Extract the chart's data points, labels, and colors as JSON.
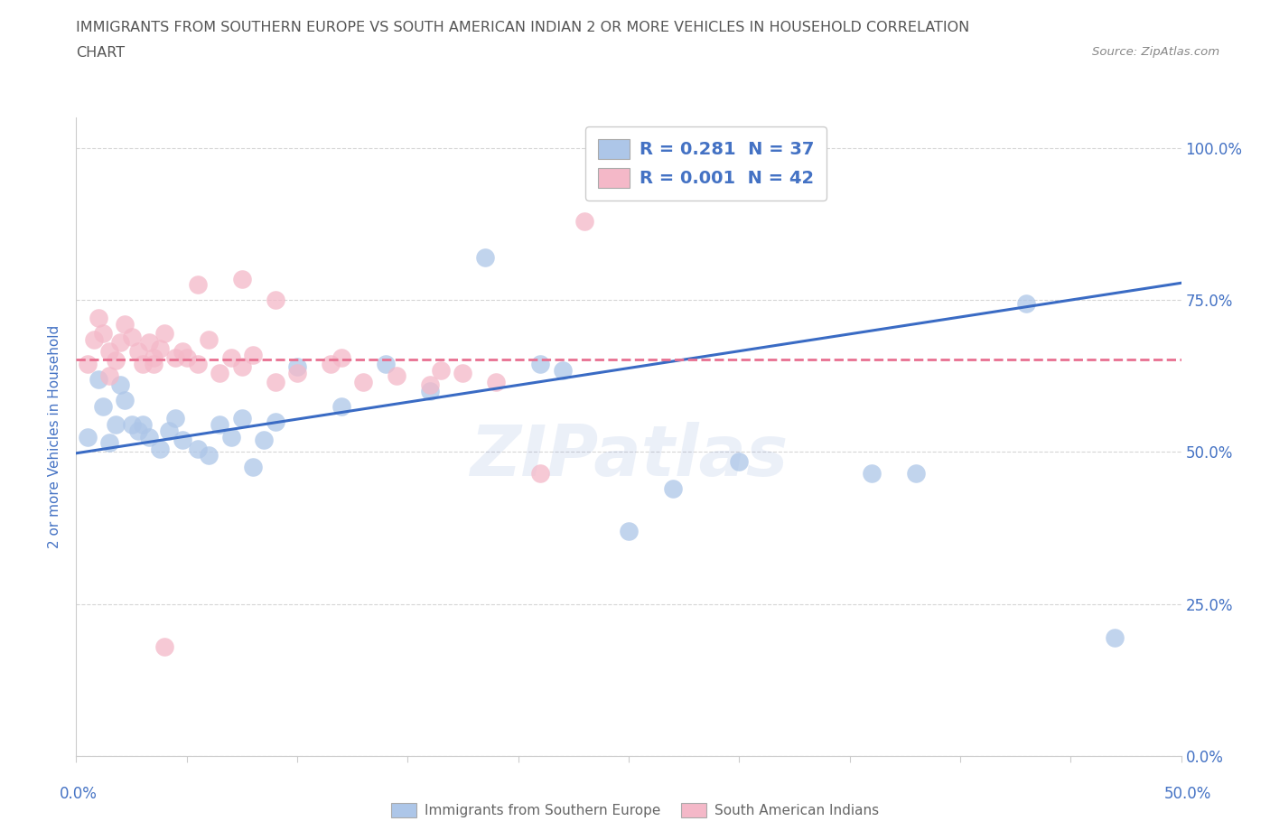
{
  "title_line1": "IMMIGRANTS FROM SOUTHERN EUROPE VS SOUTH AMERICAN INDIAN 2 OR MORE VEHICLES IN HOUSEHOLD CORRELATION",
  "title_line2": "CHART",
  "source": "Source: ZipAtlas.com",
  "ylabel": "2 or more Vehicles in Household",
  "ytick_vals": [
    0.0,
    0.25,
    0.5,
    0.75,
    1.0
  ],
  "ytick_labels": [
    "0.0%",
    "25.0%",
    "50.0%",
    "75.0%",
    "100.0%"
  ],
  "xlim": [
    0.0,
    0.5
  ],
  "ylim": [
    0.0,
    1.05
  ],
  "blue_color": "#adc6e8",
  "pink_color": "#f4b8c8",
  "line_blue": "#3a6bc4",
  "line_pink": "#e87090",
  "watermark_color": "#4472c4",
  "background_color": "#ffffff",
  "grid_color": "#cccccc",
  "axis_label_color": "#4472c4",
  "title_color": "#555555",
  "blue_line_x": [
    0.0,
    0.5
  ],
  "blue_line_y": [
    0.498,
    0.778
  ],
  "pink_line_x": [
    0.0,
    0.5
  ],
  "pink_line_y": [
    0.652,
    0.652
  ],
  "blue_x": [
    0.005,
    0.01,
    0.012,
    0.015,
    0.018,
    0.02,
    0.022,
    0.025,
    0.028,
    0.03,
    0.033,
    0.038,
    0.042,
    0.045,
    0.048,
    0.055,
    0.06,
    0.065,
    0.07,
    0.075,
    0.08,
    0.085,
    0.09,
    0.1,
    0.12,
    0.14,
    0.16,
    0.185,
    0.21,
    0.22,
    0.25,
    0.27,
    0.3,
    0.36,
    0.38,
    0.43,
    0.47
  ],
  "blue_y": [
    0.525,
    0.62,
    0.575,
    0.515,
    0.545,
    0.61,
    0.585,
    0.545,
    0.535,
    0.545,
    0.525,
    0.505,
    0.535,
    0.555,
    0.52,
    0.505,
    0.495,
    0.545,
    0.525,
    0.555,
    0.475,
    0.52,
    0.55,
    0.64,
    0.575,
    0.645,
    0.6,
    0.82,
    0.645,
    0.635,
    0.37,
    0.44,
    0.485,
    0.465,
    0.465,
    0.745,
    0.195
  ],
  "pink_x": [
    0.005,
    0.008,
    0.01,
    0.012,
    0.015,
    0.018,
    0.02,
    0.022,
    0.025,
    0.028,
    0.03,
    0.033,
    0.035,
    0.038,
    0.04,
    0.045,
    0.048,
    0.05,
    0.055,
    0.06,
    0.065,
    0.07,
    0.075,
    0.08,
    0.09,
    0.1,
    0.115,
    0.13,
    0.145,
    0.16,
    0.175,
    0.19,
    0.21,
    0.23,
    0.09,
    0.075,
    0.055,
    0.035,
    0.015,
    0.12,
    0.165,
    0.04
  ],
  "pink_y": [
    0.645,
    0.685,
    0.72,
    0.695,
    0.665,
    0.65,
    0.68,
    0.71,
    0.69,
    0.665,
    0.645,
    0.68,
    0.655,
    0.67,
    0.695,
    0.655,
    0.665,
    0.655,
    0.645,
    0.685,
    0.63,
    0.655,
    0.64,
    0.66,
    0.615,
    0.63,
    0.645,
    0.615,
    0.625,
    0.61,
    0.63,
    0.615,
    0.465,
    0.88,
    0.75,
    0.785,
    0.775,
    0.645,
    0.625,
    0.655,
    0.635,
    0.18
  ]
}
